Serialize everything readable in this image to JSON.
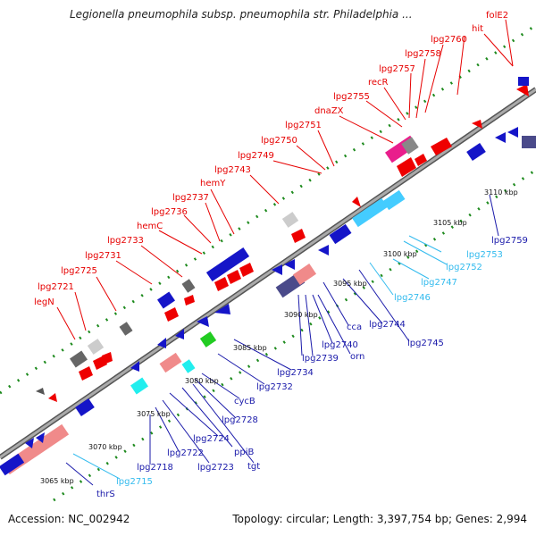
{
  "title": "Legionella pneumophila subsp. pneumophila str. Philadelphia ...",
  "footer": {
    "accession": "Accession: NC_002942",
    "summary": "Topology: circular; Length: 3,397,754 bp; Genes: 2,994"
  },
  "colors": {
    "forward_label": "#e60000",
    "reverse_label": "#1a1aaa",
    "rna_label": "#33bbee",
    "backbone": "#888888",
    "tick": "#1d8a1d"
  },
  "scale_labels": [
    "3065 kbp",
    "3070 kbp",
    "3075 kbp",
    "3080 kbp",
    "3085 kbp",
    "3090 kbp",
    "3095 kbp",
    "3100 kbp",
    "3105 kbp",
    "3110 kbp"
  ],
  "forward_genes": [
    "legN",
    "lpg2721",
    "lpg2725",
    "lpg2731",
    "lpg2733",
    "hemC",
    "lpg2736",
    "lpg2737",
    "hemY",
    "lpg2743",
    "lpg2749",
    "lpg2750",
    "lpg2751",
    "dnaZX",
    "lpg2755",
    "recR",
    "lpg2757",
    "lpg2758",
    "lpg2760",
    "hit",
    "folE2"
  ],
  "reverse_genes": [
    "thrS",
    "lpg2715",
    "lpg2718",
    "lpg2722",
    "lpg2723",
    "lpg2724",
    "ppiB",
    "tgt",
    "lpg2728",
    "cycB",
    "lpg2732",
    "lpg2734",
    "lpg2739",
    "lpg2740",
    "orn",
    "cca",
    "lpg2744",
    "lpg2745",
    "lpg2746",
    "lpg2747",
    "lpg2752",
    "lpg2753",
    "lpg2759"
  ]
}
